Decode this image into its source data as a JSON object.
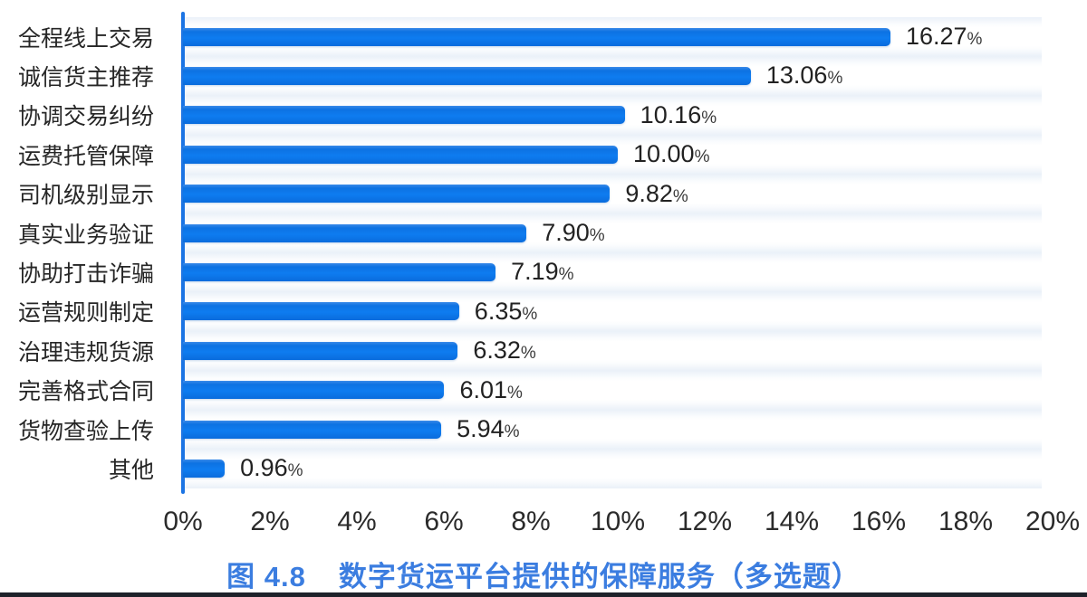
{
  "chart_data": {
    "type": "bar",
    "orientation": "horizontal",
    "title": "图 4.8 数字货运平台提供的保障服务（多选题）",
    "categories": [
      "全程线上交易",
      "诚信货主推荐",
      "协调交易纠纷",
      "运费托管保障",
      "司机级别显示",
      "真实业务验证",
      "协助打击诈骗",
      "运营规则制定",
      "治理违规货源",
      "完善格式合同",
      "货物查验上传",
      "其他"
    ],
    "values": [
      16.27,
      13.06,
      10.16,
      10.0,
      9.82,
      7.9,
      7.19,
      6.35,
      6.32,
      6.01,
      5.94,
      0.96
    ],
    "value_labels": [
      "16.27",
      "13.06",
      "10.16",
      "10.00",
      "9.82",
      "7.90",
      "7.19",
      "6.35",
      "6.32",
      "6.01",
      "5.94",
      "0.96"
    ],
    "unit": "%",
    "x_ticks": [
      "0%",
      "2%",
      "4%",
      "6%",
      "8%",
      "10%",
      "12%",
      "14%",
      "16%",
      "18%",
      "20%"
    ],
    "xlim": [
      0,
      20
    ],
    "grid": false,
    "legend_position": "none",
    "bar_color": "#0b76ec",
    "axis_color": "#1b74e4",
    "value_text_color": "#222222",
    "tick_text_color": "#2b2b2b"
  },
  "caption": {
    "prefix": "图 4.8",
    "title": "数字货运平台提供的保障服务（多选题）",
    "color": "#3b7de0"
  }
}
